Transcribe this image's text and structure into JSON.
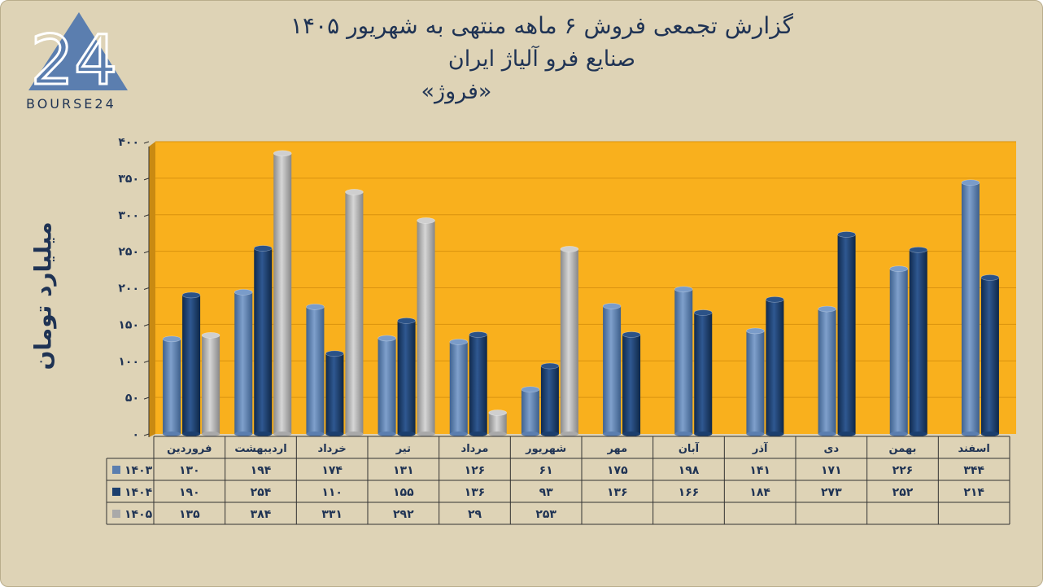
{
  "header": {
    "title_line1": "گزارش تجمعی فروش ۶ ماهه منتهی به شهریور ۱۴۰۵",
    "title_line2": "صنایع فرو آلیاژ ایران",
    "title_line3": "«فروژ»"
  },
  "logo": {
    "text": "BOURSE24",
    "mark": "24"
  },
  "chart_data": {
    "type": "bar",
    "ylabel": "میلیارد تومان",
    "ylim": [
      0,
      400
    ],
    "yticks": [
      "۰",
      "۵۰",
      "۱۰۰",
      "۱۵۰",
      "۲۰۰",
      "۲۵۰",
      "۳۰۰",
      "۳۵۰",
      "۴۰۰"
    ],
    "categories": [
      "فروردین",
      "اردیبهشت",
      "خرداد",
      "تیر",
      "مرداد",
      "شهریور",
      "مهر",
      "آبان",
      "آذر",
      "دی",
      "بهمن",
      "اسفند"
    ],
    "series": [
      {
        "name": "۱۴۰۳",
        "color": "#5b7eaf",
        "values": [
          130,
          194,
          174,
          131,
          126,
          61,
          175,
          198,
          141,
          171,
          226,
          344
        ],
        "labels": [
          "۱۳۰",
          "۱۹۴",
          "۱۷۴",
          "۱۳۱",
          "۱۲۶",
          "۶۱",
          "۱۷۵",
          "۱۹۸",
          "۱۴۱",
          "۱۷۱",
          "۲۲۶",
          "۳۴۴"
        ]
      },
      {
        "name": "۱۴۰۴",
        "color": "#1c3f6e",
        "values": [
          190,
          254,
          110,
          155,
          136,
          93,
          136,
          166,
          184,
          273,
          252,
          214
        ],
        "labels": [
          "۱۹۰",
          "۲۵۴",
          "۱۱۰",
          "۱۵۵",
          "۱۳۶",
          "۹۳",
          "۱۳۶",
          "۱۶۶",
          "۱۸۴",
          "۲۷۳",
          "۲۵۲",
          "۲۱۴"
        ]
      },
      {
        "name": "۱۴۰۵",
        "color": "#a9a9a9",
        "values": [
          135,
          384,
          331,
          292,
          29,
          253,
          null,
          null,
          null,
          null,
          null,
          null
        ],
        "labels": [
          "۱۳۵",
          "۳۸۴",
          "۳۳۱",
          "۲۹۲",
          "۲۹",
          "۲۵۳",
          "",
          "",
          "",
          "",
          "",
          ""
        ]
      }
    ],
    "plot_background": "#f9b01d",
    "legend": "data-table",
    "grid": true
  }
}
